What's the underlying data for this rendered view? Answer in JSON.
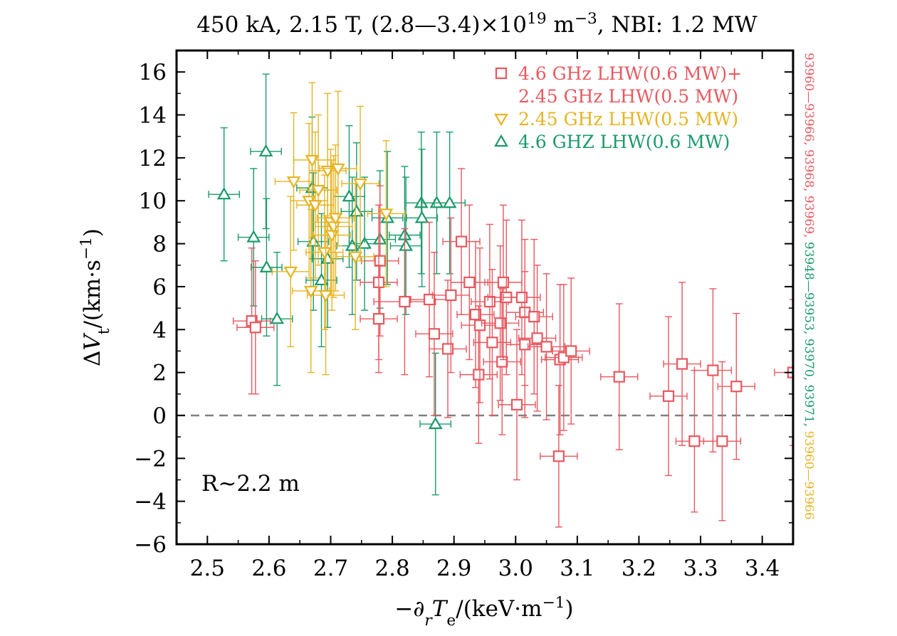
{
  "chart_data": {
    "type": "scatter",
    "title": "450 kA, 2.15 T, (2.8—3.4)×10¹⁹ m⁻³, NBI: 1.2 MW",
    "xlabel": "−∂rTe/(keV·m⁻¹)",
    "ylabel": "ΔVt/(km·s⁻¹)",
    "xlim": [
      2.45,
      3.45
    ],
    "ylim": [
      -6,
      17
    ],
    "xticks": [
      "2.5",
      "2.6",
      "2.7",
      "2.8",
      "2.9",
      "3.0",
      "3.1",
      "3.2",
      "3.3",
      "3.4"
    ],
    "xtick_values": [
      2.5,
      2.6,
      2.7,
      2.8,
      2.9,
      3.0,
      3.1,
      3.2,
      3.3,
      3.4
    ],
    "yticks": [
      "−6",
      "−4",
      "−2",
      "0",
      "2",
      "4",
      "6",
      "8",
      "10",
      "12",
      "14",
      "16"
    ],
    "ytick_values": [
      -6,
      -4,
      -2,
      0,
      2,
      4,
      6,
      8,
      10,
      12,
      14,
      16
    ],
    "grid": false,
    "legend_position": "top-right",
    "zero_line": {
      "y": 0,
      "style": "dashed",
      "color": "#808080"
    },
    "annotation": "R~2.2 m",
    "side_label": {
      "parts": [
        {
          "text": "93960—93966, 93968, 93969, ",
          "color": "#e8585f"
        },
        {
          "text": "93948—93953, 93970, 93971, ",
          "color": "#1a9a6a"
        },
        {
          "text": "93960—93966",
          "color": "#e6b422"
        }
      ]
    },
    "series": [
      {
        "name": "4.6 GHz LHW(0.6 MW)+ 2.45 GHz LHW(0.5 MW)",
        "legend_lines": [
          "4.6 GHz LHW(0.6 MW)+",
          "2.45 GHz LHW(0.5 MW)"
        ],
        "marker": "square",
        "color": "#e8585f",
        "points": [
          {
            "x": 2.572,
            "y": 4.4,
            "xerr": 0.03,
            "yerr": 3.4
          },
          {
            "x": 2.578,
            "y": 4.1,
            "xerr": 0.03,
            "yerr": 3.1
          },
          {
            "x": 2.78,
            "y": 7.2,
            "xerr": 0.03,
            "yerr": 3.5
          },
          {
            "x": 2.778,
            "y": 6.2,
            "xerr": 0.03,
            "yerr": 3.6
          },
          {
            "x": 2.778,
            "y": 4.5,
            "xerr": 0.03,
            "yerr": 2.5
          },
          {
            "x": 2.82,
            "y": 5.3,
            "xerr": 0.05,
            "yerr": 3.4
          },
          {
            "x": 2.86,
            "y": 5.4,
            "xerr": 0.03,
            "yerr": 3.6
          },
          {
            "x": 2.868,
            "y": 3.8,
            "xerr": 0.03,
            "yerr": 3.8
          },
          {
            "x": 2.89,
            "y": 3.1,
            "xerr": 0.03,
            "yerr": 3.2
          },
          {
            "x": 2.895,
            "y": 5.6,
            "xerr": 0.03,
            "yerr": 3.6
          },
          {
            "x": 2.912,
            "y": 8.1,
            "xerr": 0.03,
            "yerr": 3.4
          },
          {
            "x": 2.925,
            "y": 6.2,
            "xerr": 0.03,
            "yerr": 3.6
          },
          {
            "x": 2.935,
            "y": 4.7,
            "xerr": 0.03,
            "yerr": 3.4
          },
          {
            "x": 2.94,
            "y": 1.9,
            "xerr": 0.03,
            "yerr": 3.2
          },
          {
            "x": 2.942,
            "y": 4.2,
            "xerr": 0.03,
            "yerr": 3.6
          },
          {
            "x": 2.958,
            "y": 5.3,
            "xerr": 0.03,
            "yerr": 3.6
          },
          {
            "x": 2.962,
            "y": 3.4,
            "xerr": 0.03,
            "yerr": 3.4
          },
          {
            "x": 2.975,
            "y": 4.3,
            "xerr": 0.03,
            "yerr": 3.6
          },
          {
            "x": 2.978,
            "y": 2.5,
            "xerr": 0.03,
            "yerr": 3.4
          },
          {
            "x": 2.98,
            "y": 6.2,
            "xerr": 0.03,
            "yerr": 3.6
          },
          {
            "x": 2.985,
            "y": 5.5,
            "xerr": 0.03,
            "yerr": 3.6
          },
          {
            "x": 3.002,
            "y": 0.5,
            "xerr": 0.03,
            "yerr": 3.5
          },
          {
            "x": 3.01,
            "y": 5.5,
            "xerr": 0.03,
            "yerr": 3.6
          },
          {
            "x": 3.015,
            "y": 4.8,
            "xerr": 0.03,
            "yerr": 3.4
          },
          {
            "x": 3.015,
            "y": 3.3,
            "xerr": 0.03,
            "yerr": 3.4
          },
          {
            "x": 3.03,
            "y": 4.6,
            "xerr": 0.03,
            "yerr": 3.6
          },
          {
            "x": 3.035,
            "y": 3.6,
            "xerr": 0.03,
            "yerr": 3.4
          },
          {
            "x": 3.05,
            "y": 3.2,
            "xerr": 0.03,
            "yerr": 3.4
          },
          {
            "x": 3.07,
            "y": -1.9,
            "xerr": 0.03,
            "yerr": 3.3
          },
          {
            "x": 3.072,
            "y": 2.6,
            "xerr": 0.03,
            "yerr": 3.5
          },
          {
            "x": 3.078,
            "y": 2.7,
            "xerr": 0.03,
            "yerr": 3.4
          },
          {
            "x": 3.09,
            "y": 3.0,
            "xerr": 0.03,
            "yerr": 3.4
          },
          {
            "x": 3.168,
            "y": 1.8,
            "xerr": 0.03,
            "yerr": 3.4
          },
          {
            "x": 3.248,
            "y": 0.9,
            "xerr": 0.03,
            "yerr": 3.7
          },
          {
            "x": 3.27,
            "y": 2.4,
            "xerr": 0.03,
            "yerr": 3.8
          },
          {
            "x": 3.29,
            "y": -1.2,
            "xerr": 0.03,
            "yerr": 3.3
          },
          {
            "x": 3.32,
            "y": 2.1,
            "xerr": 0.03,
            "yerr": 3.8
          },
          {
            "x": 3.335,
            "y": -1.2,
            "xerr": 0.03,
            "yerr": 3.7
          },
          {
            "x": 3.358,
            "y": 1.35,
            "xerr": 0.03,
            "yerr": 3.4
          },
          {
            "x": 3.45,
            "y": 2.0,
            "xerr": 0.03,
            "yerr": 3.4
          }
        ]
      },
      {
        "name": "2.45 GHz LHW(0.5 MW)",
        "legend_lines": [
          "2.45 GHz LHW(0.5 MW)"
        ],
        "marker": "triangle-down",
        "color": "#e6b422",
        "points": [
          {
            "x": 2.64,
            "y": 10.9,
            "xerr": 0.03,
            "yerr": 3.2
          },
          {
            "x": 2.635,
            "y": 6.7,
            "xerr": 0.03,
            "yerr": 3.5
          },
          {
            "x": 2.665,
            "y": 10.0,
            "xerr": 0.03,
            "yerr": 3.6
          },
          {
            "x": 2.668,
            "y": 5.8,
            "xerr": 0.03,
            "yerr": 3.8
          },
          {
            "x": 2.67,
            "y": 11.9,
            "xerr": 0.03,
            "yerr": 3.6
          },
          {
            "x": 2.675,
            "y": 9.8,
            "xerr": 0.03,
            "yerr": 3.4
          },
          {
            "x": 2.68,
            "y": 10.5,
            "xerr": 0.03,
            "yerr": 3.5
          },
          {
            "x": 2.69,
            "y": 7.6,
            "xerr": 0.03,
            "yerr": 3.6
          },
          {
            "x": 2.692,
            "y": 5.6,
            "xerr": 0.03,
            "yerr": 3.7
          },
          {
            "x": 2.695,
            "y": 11.4,
            "xerr": 0.03,
            "yerr": 3.6
          },
          {
            "x": 2.7,
            "y": 9.0,
            "xerr": 0.03,
            "yerr": 3.4
          },
          {
            "x": 2.702,
            "y": 8.4,
            "xerr": 0.03,
            "yerr": 3.5
          },
          {
            "x": 2.705,
            "y": 8.8,
            "xerr": 0.03,
            "yerr": 3.3
          },
          {
            "x": 2.708,
            "y": 9.2,
            "xerr": 0.03,
            "yerr": 3.4
          },
          {
            "x": 2.712,
            "y": 11.5,
            "xerr": 0.03,
            "yerr": 3.6
          },
          {
            "x": 2.74,
            "y": 7.4,
            "xerr": 0.03,
            "yerr": 3.4
          },
          {
            "x": 2.748,
            "y": 10.8,
            "xerr": 0.03,
            "yerr": 3.6
          },
          {
            "x": 2.79,
            "y": 9.4,
            "xerr": 0.03,
            "yerr": 3.4
          }
        ]
      },
      {
        "name": "4.6 GHZ LHW(0.6 MW)",
        "legend_lines": [
          "4.6 GHZ LHW(0.6 MW)"
        ],
        "marker": "triangle-up",
        "color": "#1a9a6a",
        "points": [
          {
            "x": 2.527,
            "y": 10.3,
            "xerr": 0.025,
            "yerr": 3.1
          },
          {
            "x": 2.575,
            "y": 8.3,
            "xerr": 0.025,
            "yerr": 3.2
          },
          {
            "x": 2.595,
            "y": 12.3,
            "xerr": 0.025,
            "yerr": 3.6
          },
          {
            "x": 2.596,
            "y": 6.9,
            "xerr": 0.025,
            "yerr": 3.2
          },
          {
            "x": 2.613,
            "y": 4.5,
            "xerr": 0.025,
            "yerr": 3.1
          },
          {
            "x": 2.67,
            "y": 10.6,
            "xerr": 0.025,
            "yerr": 3.3
          },
          {
            "x": 2.672,
            "y": 8.1,
            "xerr": 0.025,
            "yerr": 3.2
          },
          {
            "x": 2.685,
            "y": 6.3,
            "xerr": 0.025,
            "yerr": 3.1
          },
          {
            "x": 2.695,
            "y": 7.3,
            "xerr": 0.025,
            "yerr": 3.2
          },
          {
            "x": 2.73,
            "y": 10.2,
            "xerr": 0.025,
            "yerr": 3.3
          },
          {
            "x": 2.735,
            "y": 7.9,
            "xerr": 0.025,
            "yerr": 3.2
          },
          {
            "x": 2.742,
            "y": 9.5,
            "xerr": 0.025,
            "yerr": 3.2
          },
          {
            "x": 2.755,
            "y": 8.0,
            "xerr": 0.025,
            "yerr": 3.1
          },
          {
            "x": 2.78,
            "y": 8.2,
            "xerr": 0.025,
            "yerr": 3.2
          },
          {
            "x": 2.792,
            "y": 9.2,
            "xerr": 0.025,
            "yerr": 3.1
          },
          {
            "x": 2.82,
            "y": 8.4,
            "xerr": 0.025,
            "yerr": 3.2
          },
          {
            "x": 2.822,
            "y": 7.9,
            "xerr": 0.025,
            "yerr": 3.2
          },
          {
            "x": 2.847,
            "y": 9.9,
            "xerr": 0.025,
            "yerr": 3.3
          },
          {
            "x": 2.848,
            "y": 9.2,
            "xerr": 0.025,
            "yerr": 3.2
          },
          {
            "x": 2.872,
            "y": 9.9,
            "xerr": 0.025,
            "yerr": 3.3
          },
          {
            "x": 2.893,
            "y": 9.9,
            "xerr": 0.025,
            "yerr": 3.3
          },
          {
            "x": 2.87,
            "y": -0.4,
            "xerr": 0.025,
            "yerr": 3.3
          }
        ]
      }
    ]
  }
}
